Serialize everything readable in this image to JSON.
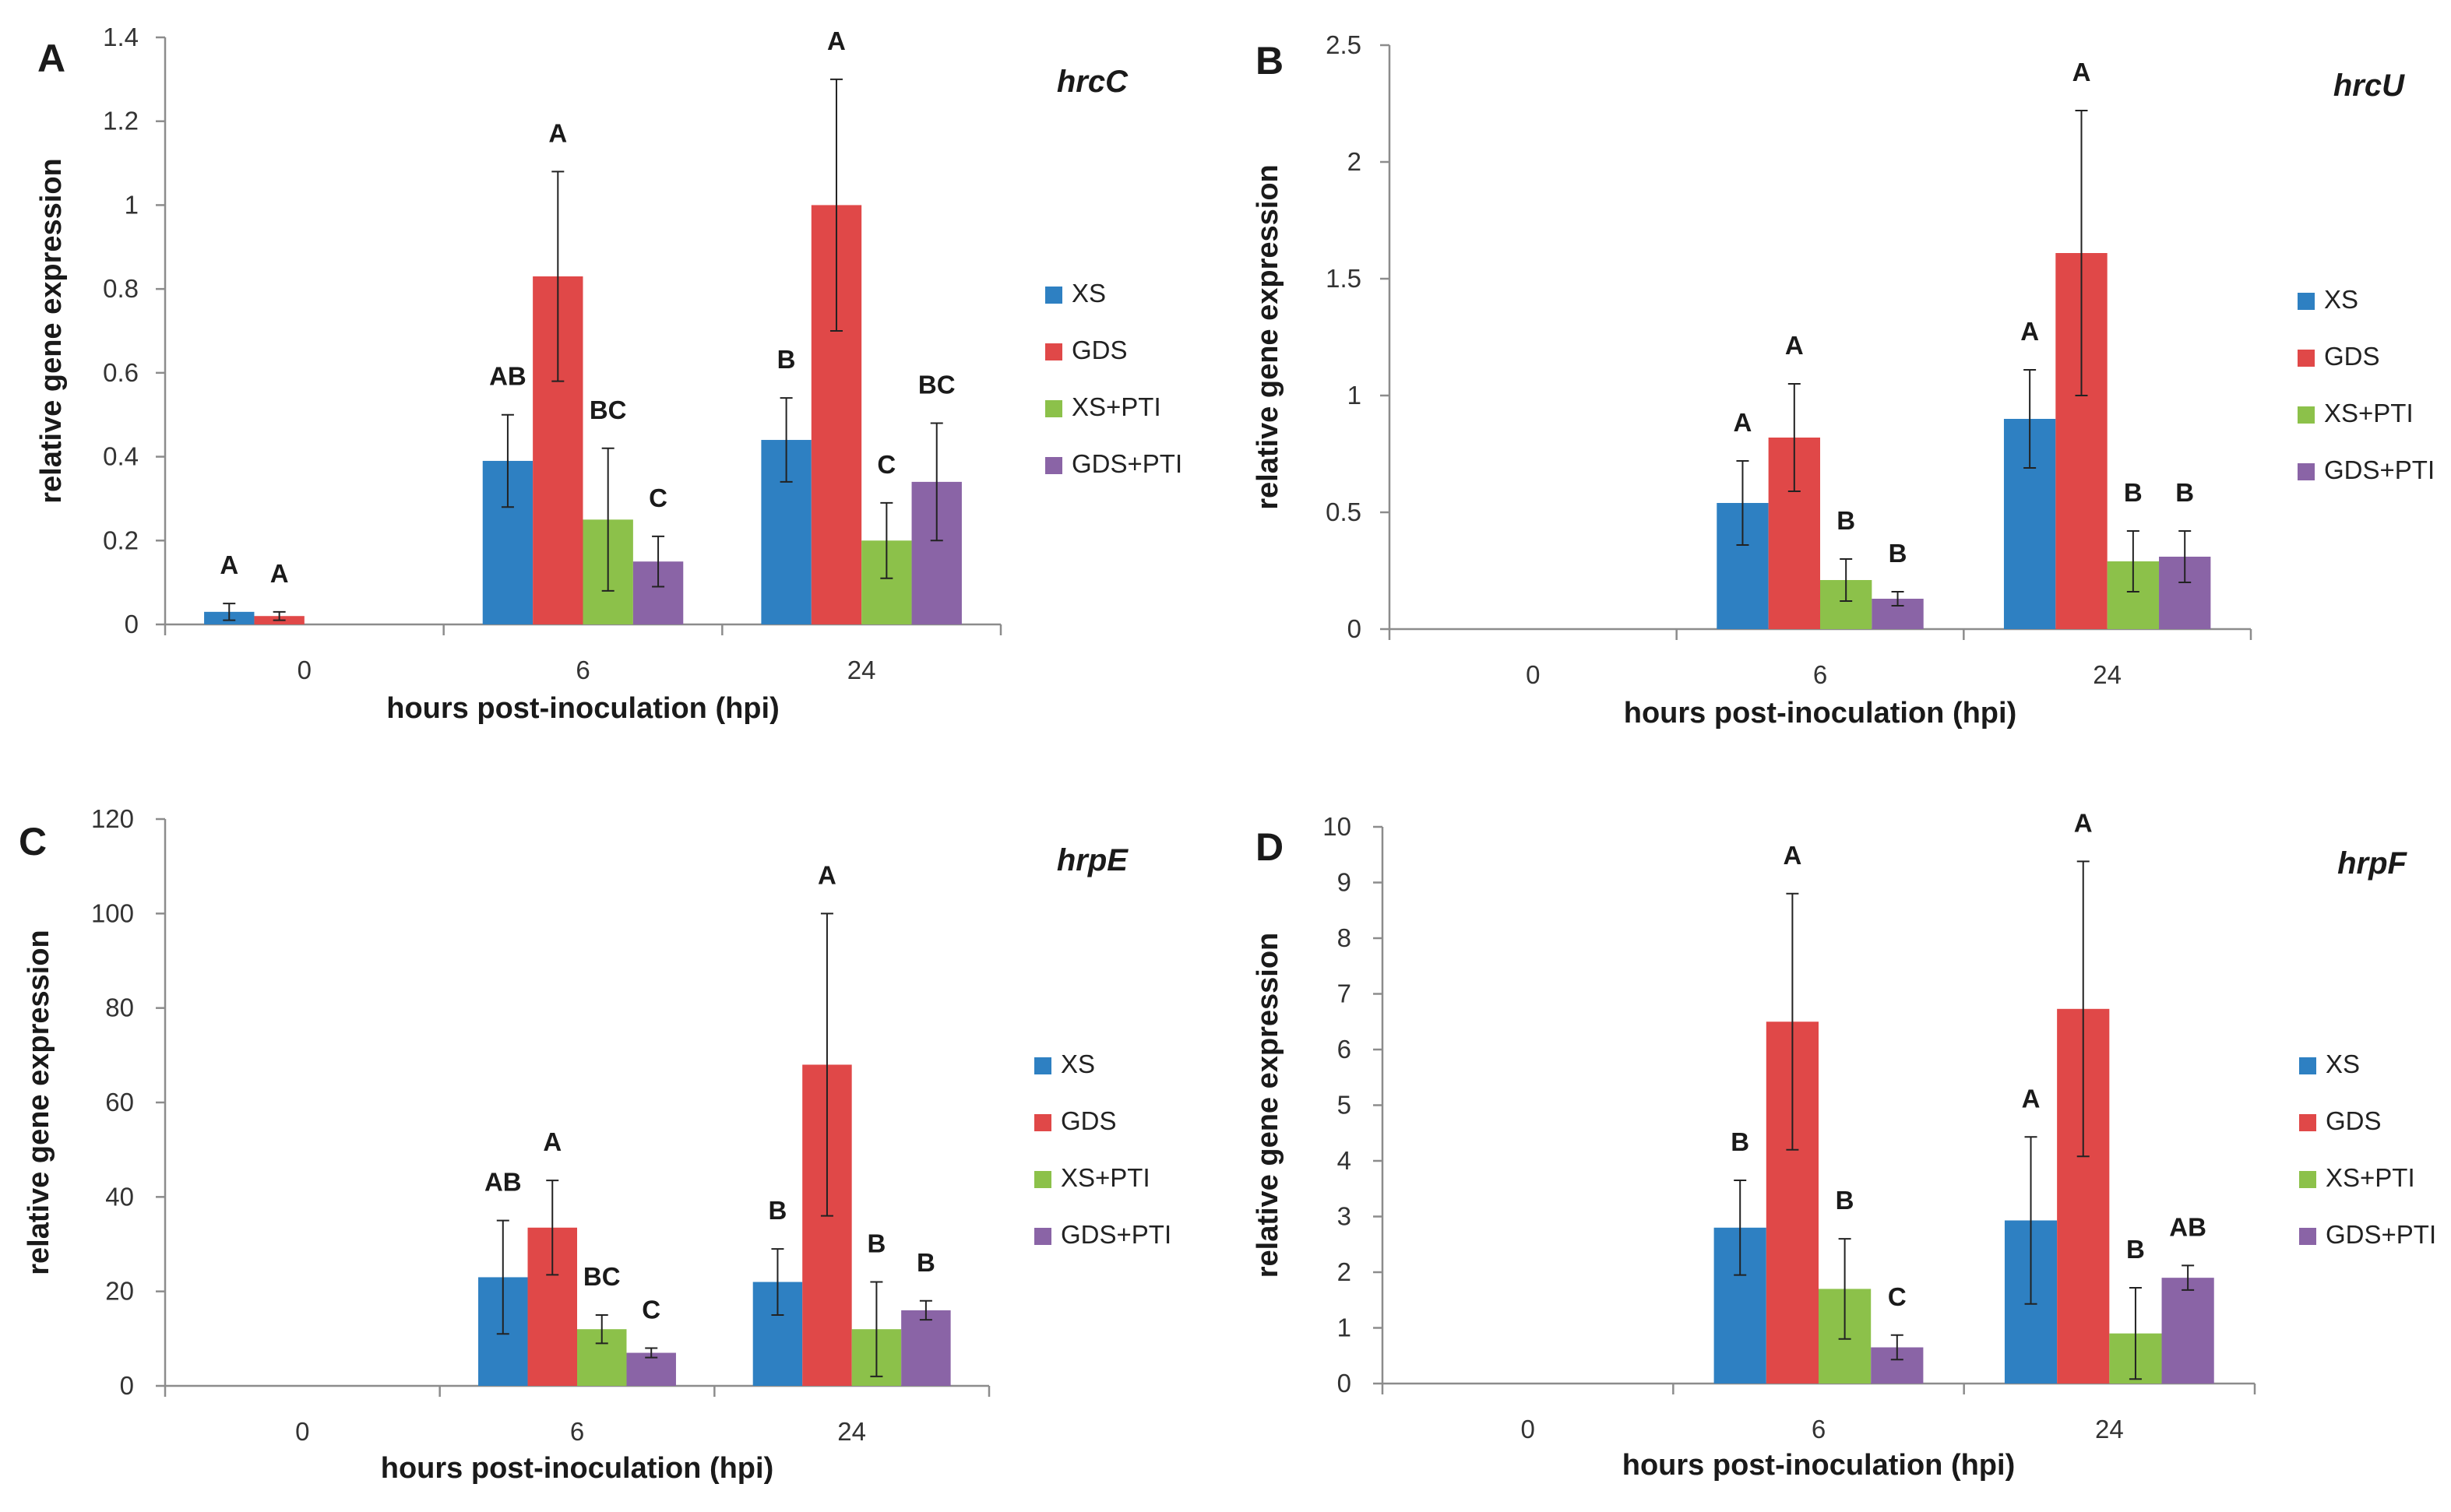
{
  "legend_labels": [
    "XS",
    "GDS",
    "XS+PTI",
    "GDS+PTI"
  ],
  "series_colors": [
    "#2e80c2",
    "#e04848",
    "#8cc14a",
    "#8a64a6"
  ],
  "chart_data": [
    {
      "type": "bar",
      "panel": "A",
      "gene": "hrcC",
      "xlabel": "hours post-inoculation (hpi)",
      "ylabel": "relative gene expression",
      "categories": [
        "0",
        "6",
        "24"
      ],
      "ylim": [
        0,
        1.4
      ],
      "ytick_labels": [
        "0",
        "0.2",
        "0.4",
        "0.6",
        "0.8",
        "1",
        "1.2",
        "1.4"
      ],
      "series": [
        {
          "name": "XS",
          "values": [
            0.03,
            0.39,
            0.44
          ],
          "errors": [
            0.02,
            0.11,
            0.1
          ],
          "letters": [
            "A",
            "AB",
            "B"
          ]
        },
        {
          "name": "GDS",
          "values": [
            0.02,
            0.83,
            1.0
          ],
          "errors": [
            0.01,
            0.25,
            0.3
          ],
          "letters": [
            "A",
            "A",
            "A"
          ]
        },
        {
          "name": "XS+PTI",
          "values": [
            null,
            0.25,
            0.2
          ],
          "errors": [
            null,
            0.17,
            0.09
          ],
          "letters": [
            "",
            "BC",
            "C"
          ]
        },
        {
          "name": "GDS+PTI",
          "values": [
            null,
            0.15,
            0.34
          ],
          "errors": [
            null,
            0.06,
            0.14
          ],
          "letters": [
            "",
            "C",
            "BC"
          ]
        }
      ]
    },
    {
      "type": "bar",
      "panel": "B",
      "gene": "hrcU",
      "xlabel": "hours post-inoculation (hpi)",
      "ylabel": "relative gene expression",
      "categories": [
        "0",
        "6",
        "24"
      ],
      "ylim": [
        0,
        2.5
      ],
      "ytick_labels": [
        "0",
        "0.5",
        "1",
        "1.5",
        "2",
        "2.5"
      ],
      "series": [
        {
          "name": "XS",
          "values": [
            null,
            0.54,
            0.9
          ],
          "errors": [
            null,
            0.18,
            0.21
          ],
          "letters": [
            "",
            "A",
            "A"
          ]
        },
        {
          "name": "GDS",
          "values": [
            null,
            0.82,
            1.61
          ],
          "errors": [
            null,
            0.23,
            0.61
          ],
          "letters": [
            "",
            "A",
            "A"
          ]
        },
        {
          "name": "XS+PTI",
          "values": [
            null,
            0.21,
            0.29
          ],
          "errors": [
            null,
            0.09,
            0.13
          ],
          "letters": [
            "",
            "B",
            "B"
          ]
        },
        {
          "name": "GDS+PTI",
          "values": [
            null,
            0.13,
            0.31
          ],
          "errors": [
            null,
            0.03,
            0.11
          ],
          "letters": [
            "",
            "B",
            "B"
          ]
        }
      ]
    },
    {
      "type": "bar",
      "panel": "C",
      "gene": "hrpE",
      "xlabel": "hours post-inoculation (hpi)",
      "ylabel": "relative gene expression",
      "categories": [
        "0",
        "6",
        "24"
      ],
      "ylim": [
        0,
        120
      ],
      "ytick_labels": [
        "0",
        "20",
        "40",
        "60",
        "80",
        "100",
        "120"
      ],
      "series": [
        {
          "name": "XS",
          "values": [
            null,
            23,
            22
          ],
          "errors": [
            null,
            12,
            7
          ],
          "letters": [
            "",
            "AB",
            "B"
          ]
        },
        {
          "name": "GDS",
          "values": [
            null,
            33.5,
            68
          ],
          "errors": [
            null,
            10,
            32
          ],
          "letters": [
            "",
            "A",
            "A"
          ]
        },
        {
          "name": "XS+PTI",
          "values": [
            null,
            12,
            12
          ],
          "errors": [
            null,
            3,
            10
          ],
          "letters": [
            "",
            "BC",
            "B"
          ]
        },
        {
          "name": "GDS+PTI",
          "values": [
            null,
            7,
            16
          ],
          "errors": [
            null,
            1,
            2
          ],
          "letters": [
            "",
            "C",
            "B"
          ]
        }
      ]
    },
    {
      "type": "bar",
      "panel": "D",
      "gene": "hrpF",
      "xlabel": "hours post-inoculation (hpi)",
      "ylabel": "relative gene expression",
      "categories": [
        "0",
        "6",
        "24"
      ],
      "ylim": [
        0,
        10
      ],
      "ytick_labels": [
        "0",
        "1",
        "2",
        "3",
        "4",
        "5",
        "6",
        "7",
        "8",
        "9",
        "10"
      ],
      "series": [
        {
          "name": "XS",
          "values": [
            null,
            2.8,
            2.93
          ],
          "errors": [
            null,
            0.85,
            1.5
          ],
          "letters": [
            "",
            "B",
            "A"
          ]
        },
        {
          "name": "GDS",
          "values": [
            null,
            6.5,
            6.73
          ],
          "errors": [
            null,
            2.3,
            2.65
          ],
          "letters": [
            "",
            "A",
            "A"
          ]
        },
        {
          "name": "XS+PTI",
          "values": [
            null,
            1.7,
            0.9
          ],
          "errors": [
            null,
            0.9,
            0.82
          ],
          "letters": [
            "",
            "B",
            "B"
          ]
        },
        {
          "name": "GDS+PTI",
          "values": [
            null,
            0.65,
            1.9
          ],
          "errors": [
            null,
            0.22,
            0.22
          ],
          "letters": [
            "",
            "C",
            "AB"
          ]
        }
      ]
    }
  ]
}
